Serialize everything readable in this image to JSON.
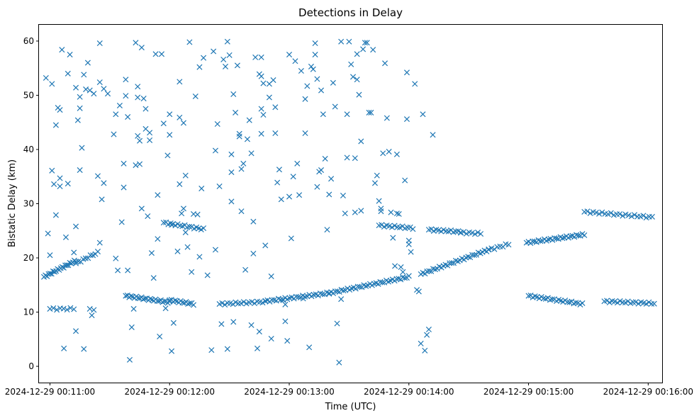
{
  "chart_data": {
    "type": "scatter",
    "title": "Detections in Delay",
    "xlabel": "Time (UTC)",
    "ylabel": "Bistatic Delay (km)",
    "marker": "x",
    "color": "#1f77b4",
    "xlim_seconds": [
      654.5,
      967.0
    ],
    "ylim": [
      -3.0,
      63.0
    ],
    "x_unit": "seconds after 2024-12-29 00:00:00 UTC",
    "x_ticks": [
      {
        "value": 660,
        "label": "2024-12-29 00:11:00"
      },
      {
        "value": 720,
        "label": "2024-12-29 00:12:00"
      },
      {
        "value": 780,
        "label": "2024-12-29 00:13:00"
      },
      {
        "value": 840,
        "label": "2024-12-29 00:14:00"
      },
      {
        "value": 900,
        "label": "2024-12-29 00:15:00"
      },
      {
        "value": 960,
        "label": "2024-12-29 00:16:00"
      }
    ],
    "y_ticks": [
      {
        "value": 0,
        "label": "0"
      },
      {
        "value": 10,
        "label": "10"
      },
      {
        "value": 20,
        "label": "20"
      },
      {
        "value": 30,
        "label": "30"
      },
      {
        "value": 40,
        "label": "40"
      },
      {
        "value": 50,
        "label": "50"
      },
      {
        "value": 60,
        "label": "60"
      }
    ],
    "points_note": "Dense tracks are listed as [t_start, t_end, delay_start, delay_end, count] segments; scattered noise detections listed as [t, delay] pairs.",
    "track_segments": [
      [
        657.0,
        673.0,
        16.5,
        19.5,
        22
      ],
      [
        673.0,
        684.0,
        19.0,
        21.0,
        10
      ],
      [
        698.0,
        720.0,
        13.0,
        11.8,
        26
      ],
      [
        720.0,
        732.0,
        12.2,
        11.5,
        14
      ],
      [
        717.0,
        737.0,
        26.5,
        25.3,
        18
      ],
      [
        745.0,
        768.0,
        11.5,
        11.9,
        18
      ],
      [
        768.0,
        800.0,
        12.0,
        13.5,
        30
      ],
      [
        800.0,
        840.0,
        13.5,
        16.5,
        40
      ],
      [
        825.0,
        842.0,
        26.0,
        25.5,
        14
      ],
      [
        846.0,
        880.0,
        17.0,
        21.5,
        34
      ],
      [
        850.0,
        866.0,
        25.2,
        24.8,
        14
      ],
      [
        866.0,
        876.0,
        24.7,
        24.5,
        8
      ],
      [
        880.0,
        890.0,
        21.5,
        22.5,
        8
      ],
      [
        899.0,
        928.0,
        22.8,
        24.3,
        30
      ],
      [
        900.0,
        927.0,
        13.0,
        11.5,
        26
      ],
      [
        928.0,
        962.0,
        28.5,
        27.5,
        24
      ],
      [
        938.0,
        963.0,
        12.0,
        11.6,
        20
      ],
      [
        660.0,
        672.0,
        10.6,
        10.6,
        8
      ]
    ],
    "scatter_points": [
      [
        658,
        53.2
      ],
      [
        659,
        24.5
      ],
      [
        660,
        20.5
      ],
      [
        661,
        52.1
      ],
      [
        661,
        36.1
      ],
      [
        662,
        33.6
      ],
      [
        663,
        44.5
      ],
      [
        663,
        27.9
      ],
      [
        664,
        47.7
      ],
      [
        665,
        47.3
      ],
      [
        665,
        33.2
      ],
      [
        665,
        34.7
      ],
      [
        666,
        58.4
      ],
      [
        667,
        3.3
      ],
      [
        668,
        23.8
      ],
      [
        669,
        54
      ],
      [
        669,
        33.7
      ],
      [
        670,
        57.5
      ],
      [
        672,
        21
      ],
      [
        673,
        51.4
      ],
      [
        673,
        6.5
      ],
      [
        673,
        25.8
      ],
      [
        674,
        45.4
      ],
      [
        675,
        47.6
      ],
      [
        675,
        49.7
      ],
      [
        675,
        36.2
      ],
      [
        676,
        40.3
      ],
      [
        677,
        53.8
      ],
      [
        677,
        3.2
      ],
      [
        678,
        51.1
      ],
      [
        679,
        56
      ],
      [
        680,
        50.9
      ],
      [
        680,
        10.6
      ],
      [
        681,
        9.4
      ],
      [
        682,
        50.3
      ],
      [
        682,
        10.4
      ],
      [
        684,
        35.1
      ],
      [
        685,
        59.6
      ],
      [
        685,
        52.4
      ],
      [
        685,
        22.8
      ],
      [
        686,
        30.8
      ],
      [
        687,
        51.2
      ],
      [
        687,
        33.8
      ],
      [
        689,
        50.3
      ],
      [
        692,
        42.8
      ],
      [
        693,
        46.5
      ],
      [
        693,
        19.9
      ],
      [
        694,
        17.7
      ],
      [
        695,
        48.1
      ],
      [
        696,
        26.6
      ],
      [
        697,
        37.4
      ],
      [
        697,
        33
      ],
      [
        698,
        52.9
      ],
      [
        698,
        49.9
      ],
      [
        699,
        46
      ],
      [
        699,
        17.7
      ],
      [
        700,
        1.2
      ],
      [
        701,
        7.2
      ],
      [
        702,
        10.6
      ],
      [
        703,
        59.7
      ],
      [
        703,
        37.1
      ],
      [
        704,
        51.6
      ],
      [
        704,
        49.6
      ],
      [
        704,
        42.5
      ],
      [
        705,
        41.6
      ],
      [
        705,
        37.3
      ],
      [
        706,
        58.8
      ],
      [
        706,
        29.1
      ],
      [
        707,
        49.4
      ],
      [
        708,
        47.5
      ],
      [
        708,
        43.8
      ],
      [
        709,
        27.7
      ],
      [
        710,
        43.1
      ],
      [
        710,
        41.7
      ],
      [
        711,
        20.9
      ],
      [
        712,
        16.3
      ],
      [
        713,
        57.6
      ],
      [
        714,
        31.6
      ],
      [
        714,
        23.5
      ],
      [
        715,
        5.5
      ],
      [
        716,
        57.6
      ],
      [
        717,
        44.8
      ],
      [
        718,
        10.7
      ],
      [
        719,
        38.9
      ],
      [
        720,
        46.5
      ],
      [
        720,
        42.7
      ],
      [
        721,
        26.1
      ],
      [
        721,
        2.8
      ],
      [
        722,
        8
      ],
      [
        724,
        21.2
      ],
      [
        725,
        45.9
      ],
      [
        725,
        33.6
      ],
      [
        725,
        52.5
      ],
      [
        726,
        28.2
      ],
      [
        727,
        44.9
      ],
      [
        727,
        29.1
      ],
      [
        728,
        24.7
      ],
      [
        728,
        35.2
      ],
      [
        729,
        22
      ],
      [
        730,
        59.8
      ],
      [
        731,
        17.4
      ],
      [
        732,
        28.1
      ],
      [
        733,
        49.8
      ],
      [
        734,
        28
      ],
      [
        735,
        55.2
      ],
      [
        735,
        20.2
      ],
      [
        736,
        32.8
      ],
      [
        737,
        56.9
      ],
      [
        739,
        16.8
      ],
      [
        741,
        3
      ],
      [
        742,
        58.1
      ],
      [
        743,
        39.8
      ],
      [
        743,
        21.5
      ],
      [
        744,
        44.7
      ],
      [
        745,
        33.2
      ],
      [
        746,
        7.8
      ],
      [
        747,
        56.6
      ],
      [
        748,
        55.3
      ],
      [
        749,
        59.9
      ],
      [
        749,
        3.2
      ],
      [
        750,
        57.4
      ],
      [
        751,
        39.1
      ],
      [
        751,
        35.8
      ],
      [
        751,
        30.4
      ],
      [
        752,
        50.2
      ],
      [
        752,
        8.2
      ],
      [
        753,
        46.8
      ],
      [
        754,
        55.5
      ],
      [
        755,
        42.9
      ],
      [
        755,
        42.4
      ],
      [
        756,
        36.4
      ],
      [
        756,
        28.6
      ],
      [
        757,
        37.4
      ],
      [
        758,
        17.8
      ],
      [
        759,
        41.9
      ],
      [
        760,
        45.4
      ],
      [
        761,
        39.3
      ],
      [
        761,
        7.6
      ],
      [
        762,
        26.7
      ],
      [
        762,
        20.8
      ],
      [
        763,
        57
      ],
      [
        764,
        3.3
      ],
      [
        765,
        53.9
      ],
      [
        765,
        6.4
      ],
      [
        766,
        53.5
      ],
      [
        766,
        57
      ],
      [
        766,
        47.5
      ],
      [
        766,
        42.9
      ],
      [
        767,
        52.2
      ],
      [
        767,
        46.4
      ],
      [
        768,
        22.3
      ],
      [
        770,
        52.1
      ],
      [
        770,
        49.6
      ],
      [
        771,
        16.6
      ],
      [
        771,
        5.1
      ],
      [
        772,
        52.8
      ],
      [
        773,
        47.8
      ],
      [
        773,
        43
      ],
      [
        774,
        33.9
      ],
      [
        775,
        36.3
      ],
      [
        776,
        30.8
      ],
      [
        777,
        12.2
      ],
      [
        778,
        11.4
      ],
      [
        778,
        8.3
      ],
      [
        779,
        4.7
      ],
      [
        780,
        57.5
      ],
      [
        780,
        31.3
      ],
      [
        781,
        23.6
      ],
      [
        782,
        35
      ],
      [
        783,
        56.3
      ],
      [
        784,
        37.4
      ],
      [
        785,
        31.6
      ],
      [
        786,
        54.5
      ],
      [
        787,
        12.5
      ],
      [
        788,
        43
      ],
      [
        788,
        49.3
      ],
      [
        789,
        51.7
      ],
      [
        790,
        3.5
      ],
      [
        791,
        55.3
      ],
      [
        792,
        54.8
      ],
      [
        793,
        59.6
      ],
      [
        793,
        57.5
      ],
      [
        794,
        53
      ],
      [
        794,
        33.1
      ],
      [
        795,
        35.9
      ],
      [
        796,
        36.2
      ],
      [
        796,
        50.9
      ],
      [
        797,
        46.5
      ],
      [
        798,
        38.3
      ],
      [
        799,
        25.2
      ],
      [
        800,
        31.7
      ],
      [
        801,
        34.6
      ],
      [
        802,
        52.3
      ],
      [
        803,
        47.9
      ],
      [
        804,
        7.9
      ],
      [
        805,
        0.7
      ],
      [
        806,
        12.4
      ],
      [
        806,
        59.9
      ],
      [
        807,
        31.5
      ],
      [
        808,
        28.2
      ],
      [
        809,
        46.5
      ],
      [
        809,
        38.5
      ],
      [
        810,
        59.9
      ],
      [
        811,
        55.7
      ],
      [
        812,
        53.4
      ],
      [
        813,
        38.4
      ],
      [
        813,
        28.4
      ],
      [
        814,
        57.6
      ],
      [
        814,
        52.9
      ],
      [
        815,
        50.1
      ],
      [
        816,
        41.5
      ],
      [
        816,
        28.7
      ],
      [
        817,
        58.5
      ],
      [
        818,
        59.7
      ],
      [
        819,
        59.7
      ],
      [
        820,
        46.8
      ],
      [
        821,
        46.8
      ],
      [
        822,
        58.4
      ],
      [
        823,
        33.8
      ],
      [
        824,
        35.2
      ],
      [
        825,
        30.5
      ],
      [
        826,
        28.6
      ],
      [
        826,
        29.1
      ],
      [
        827,
        39.3
      ],
      [
        828,
        55.9
      ],
      [
        829,
        45.8
      ],
      [
        830,
        39.6
      ],
      [
        831,
        28.4
      ],
      [
        832,
        23.7
      ],
      [
        833,
        18.5
      ],
      [
        834,
        28.2
      ],
      [
        834,
        39.1
      ],
      [
        835,
        28.1
      ],
      [
        836,
        18.3
      ],
      [
        837,
        17.4
      ],
      [
        838,
        34.3
      ],
      [
        839,
        54.2
      ],
      [
        839,
        45.6
      ],
      [
        840,
        22.5
      ],
      [
        840,
        23.2
      ],
      [
        841,
        21.1
      ],
      [
        843,
        52.1
      ],
      [
        844,
        14.1
      ],
      [
        845,
        13.8
      ],
      [
        846,
        4.2
      ],
      [
        847,
        46.5
      ],
      [
        848,
        2.9
      ],
      [
        849,
        5.8
      ],
      [
        850,
        6.8
      ],
      [
        852,
        42.7
      ]
    ]
  }
}
